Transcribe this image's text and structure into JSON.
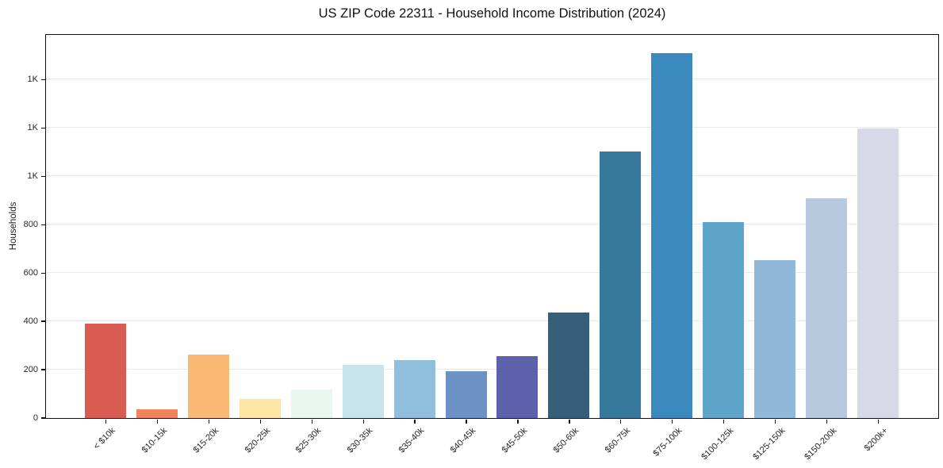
{
  "chart_data": {
    "type": "bar",
    "title": "US ZIP Code 22311 - Household Income Distribution (2024)",
    "xlabel": "",
    "ylabel": "Households",
    "categories": [
      "< $10k",
      "$10-15k",
      "$15-20k",
      "$20-25k",
      "$25-30k",
      "$30-35k",
      "$35-40k",
      "$40-45k",
      "$45-50k",
      "$50-60k",
      "$60-75k",
      "$75-100k",
      "$100-125k",
      "$125-150k",
      "$150-200k",
      "$200k+"
    ],
    "values": [
      390,
      33,
      262,
      76,
      118,
      219,
      237,
      192,
      254,
      434,
      1100,
      1507,
      810,
      653,
      908,
      1195
    ],
    "bar_colors": [
      "#d85c51",
      "#f0845c",
      "#fbba74",
      "#fde5a4",
      "#eaf6ef",
      "#c6e3ee",
      "#90bedd",
      "#6b93c5",
      "#5d61ac",
      "#355f78",
      "#37799d",
      "#3a8ac0",
      "#5ea5ca",
      "#90b8d9",
      "#b7c9df",
      "#d7d9e7"
    ],
    "ylim": [
      0,
      1585
    ],
    "yticks": [
      0,
      200,
      400,
      600,
      800,
      1000,
      1200,
      1400
    ],
    "ytick_labels": [
      "0",
      "200",
      "400",
      "600",
      "800",
      "1K",
      "1K",
      "1K"
    ],
    "x_tick_rotation": 45,
    "grid": "horizontal",
    "grid_color": "#e9e9eb",
    "spine_color": "#111111",
    "legend": "none"
  }
}
